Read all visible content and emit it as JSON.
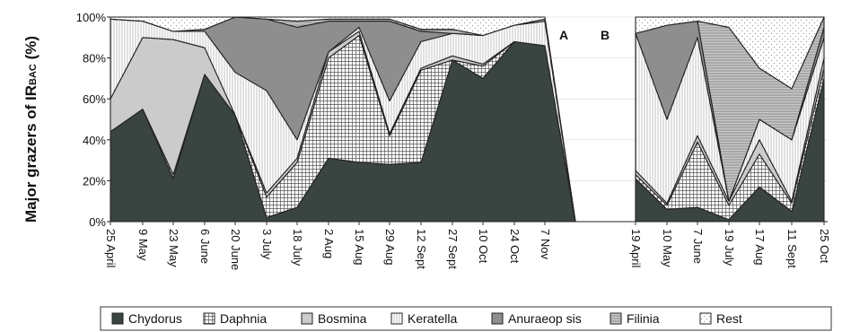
{
  "chart_data": {
    "type": "area",
    "stacked": true,
    "ylabel_prefix": "Major grazers of IR",
    "ylabel_sub": "BAC",
    "ylabel_suffix": " (%)",
    "ylim": [
      0,
      100
    ],
    "yticks": [
      "0%",
      "20%",
      "40%",
      "60%",
      "80%",
      "100%"
    ],
    "markers": [
      "A",
      "B"
    ],
    "panels": [
      {
        "categories": [
          "25 April",
          "9 May",
          "23 May",
          "6 June",
          "20 June",
          "3 July",
          "18 July",
          "2 Aug",
          "15 Aug",
          "29 Aug",
          "12 Sept",
          "27 Sept",
          "10 Oct",
          "24 Oct",
          "7 Nov",
          "",
          ""
        ],
        "series": [
          {
            "name": "Chydorus",
            "values": [
              44,
              55,
              21,
              72,
              52,
              2,
              7,
              31,
              29,
              28,
              29,
              79,
              70,
              88,
              86,
              0,
              0
            ]
          },
          {
            "name": "Daphnia",
            "values": [
              0,
              0,
              2,
              0,
              0,
              10,
              22,
              49,
              62,
              14,
              45,
              0,
              6,
              0,
              0,
              0,
              0
            ]
          },
          {
            "name": "Bosmina",
            "values": [
              16,
              35,
              66,
              13,
              0,
              2,
              2,
              3,
              2,
              1,
              1,
              2,
              1,
              0,
              0,
              0,
              0
            ]
          },
          {
            "name": "Keratella",
            "values": [
              39,
              8,
              4,
              8,
              21,
              50,
              9,
              0,
              2,
              16,
              13,
              11,
              14,
              8,
              12,
              0,
              0
            ]
          },
          {
            "name": "Anuraeopsis",
            "values": [
              0,
              0,
              0,
              1,
              27,
              35,
              55,
              15,
              3,
              39,
              5,
              0,
              0,
              0,
              0,
              0,
              0
            ]
          },
          {
            "name": "Filinia",
            "values": [
              0,
              0,
              0,
              0,
              0,
              0,
              3,
              1,
              1,
              1,
              1,
              2,
              0,
              0,
              1,
              0,
              0
            ]
          },
          {
            "name": "Rest",
            "values": [
              1,
              2,
              7,
              6,
              0,
              1,
              2,
              1,
              1,
              1,
              6,
              6,
              9,
              4,
              1,
              0,
              0
            ]
          }
        ]
      },
      {
        "categories": [
          "19 April",
          "10 May",
          "7 June",
          "19 July",
          "17 Aug",
          "11 Sept",
          "25 Oct"
        ],
        "series": [
          {
            "name": "Chydorus",
            "values": [
              21,
              6,
              7,
              1,
              17,
              5,
              70
            ]
          },
          {
            "name": "Daphnia",
            "values": [
              2,
              2,
              32,
              7,
              16,
              4,
              5
            ]
          },
          {
            "name": "Bosmina",
            "values": [
              2,
              1,
              3,
              2,
              7,
              1,
              5
            ]
          },
          {
            "name": "Keratella",
            "values": [
              67,
              41,
              48,
              0,
              10,
              30,
              10
            ]
          },
          {
            "name": "Anuraeopsis",
            "values": [
              0,
              46,
              8,
              0,
              0,
              0,
              5
            ]
          },
          {
            "name": "Filinia",
            "values": [
              0,
              0,
              0,
              85,
              25,
              25,
              5
            ]
          },
          {
            "name": "Rest",
            "values": [
              8,
              4,
              2,
              5,
              25,
              35,
              0
            ]
          }
        ]
      }
    ],
    "legend": [
      "Chydorus",
      "Daphnia",
      "Bosmina",
      "Keratella",
      "Anuraeop sis",
      "Filinia",
      "Rest"
    ],
    "colors": {
      "Chydorus": "#3a4440",
      "Daphnia": "#ffffff",
      "Bosmina": "#cbcbcb",
      "Keratella": "#ffffff",
      "Anuraeopsis": "#8e8e8e",
      "Filinia": "#b8b8b8",
      "Rest": "#ffffff"
    }
  }
}
